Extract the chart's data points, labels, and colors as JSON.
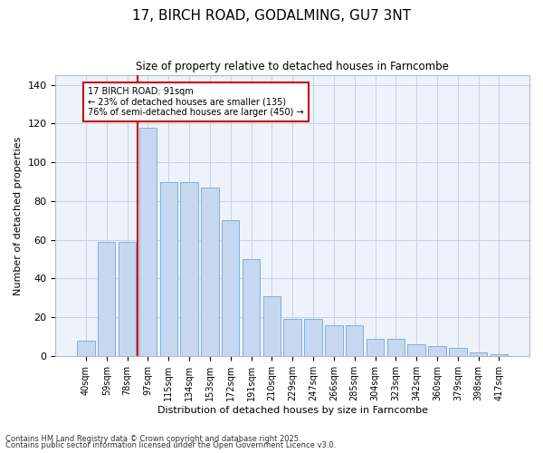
{
  "title": "17, BIRCH ROAD, GODALMING, GU7 3NT",
  "subtitle": "Size of property relative to detached houses in Farncombe",
  "xlabel": "Distribution of detached houses by size in Farncombe",
  "ylabel": "Number of detached properties",
  "categories": [
    "40sqm",
    "59sqm",
    "78sqm",
    "97sqm",
    "115sqm",
    "134sqm",
    "153sqm",
    "172sqm",
    "191sqm",
    "210sqm",
    "229sqm",
    "247sqm",
    "266sqm",
    "285sqm",
    "304sqm",
    "323sqm",
    "342sqm",
    "360sqm",
    "379sqm",
    "398sqm",
    "417sqm"
  ],
  "values": [
    8,
    59,
    59,
    118,
    90,
    90,
    87,
    70,
    50,
    31,
    19,
    19,
    16,
    16,
    9,
    9,
    6,
    5,
    4,
    2,
    1
  ],
  "bar_color": "#c5d8f0",
  "bar_edge_color": "#7fb0d8",
  "vline_color": "#cc0000",
  "vline_pos": 2.5,
  "annotation_text": "17 BIRCH ROAD: 91sqm\n← 23% of detached houses are smaller (135)\n76% of semi-detached houses are larger (450) →",
  "annotation_box_color": "#cc0000",
  "ylim": [
    0,
    145
  ],
  "yticks": [
    0,
    20,
    40,
    60,
    80,
    100,
    120,
    140
  ],
  "bg_color": "#eef2fb",
  "grid_color": "#c8d0e8",
  "footer1": "Contains HM Land Registry data © Crown copyright and database right 2025.",
  "footer2": "Contains public sector information licensed under the Open Government Licence v3.0."
}
